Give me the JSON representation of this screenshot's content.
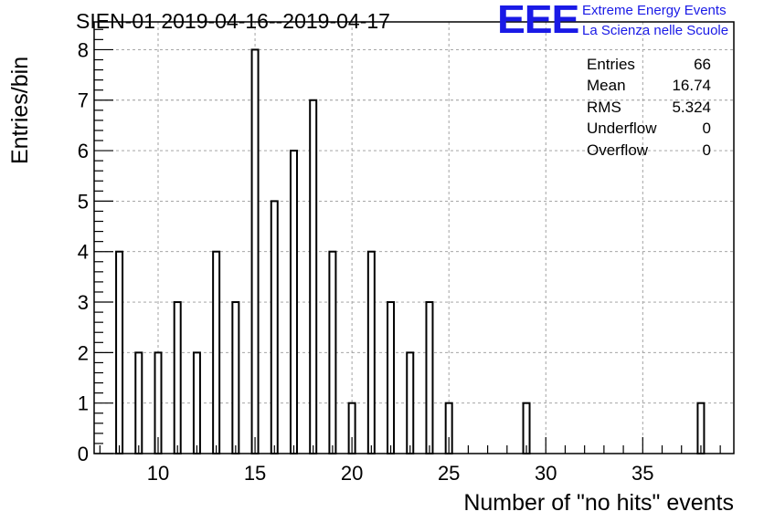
{
  "title": "SIEN-01 2019-04-16--2019-04-17",
  "logo": {
    "text": "EEE",
    "line1": "Extreme Energy Events",
    "line2": "La Scienza nelle Scuole",
    "color": "#1a1ae6"
  },
  "stats": [
    {
      "label": "Entries",
      "value": "66"
    },
    {
      "label": "Mean",
      "value": "16.74"
    },
    {
      "label": "RMS",
      "value": "5.324"
    },
    {
      "label": "Underflow",
      "value": "0"
    },
    {
      "label": "Overflow",
      "value": "0"
    }
  ],
  "chart_data": {
    "type": "bar",
    "title": "SIEN-01 2019-04-16--2019-04-17",
    "xlabel": "Number of \"no hits\" events",
    "ylabel": "Entries/bin",
    "xlim": [
      6.7,
      39.7
    ],
    "ylim": [
      0,
      8.55
    ],
    "bin_width": 0.33,
    "grid": true,
    "x_ticks": [
      10,
      15,
      20,
      25,
      30,
      35
    ],
    "y_ticks": [
      0,
      1,
      2,
      3,
      4,
      5,
      6,
      7,
      8
    ],
    "x": [
      8,
      9,
      10,
      11,
      12,
      13,
      14,
      15,
      16,
      17,
      18,
      19,
      20,
      21,
      22,
      23,
      24,
      25,
      29,
      38
    ],
    "values": [
      4,
      2,
      2,
      3,
      2,
      4,
      3,
      8,
      5,
      6,
      7,
      4,
      1,
      4,
      3,
      2,
      3,
      1,
      1,
      1
    ]
  }
}
